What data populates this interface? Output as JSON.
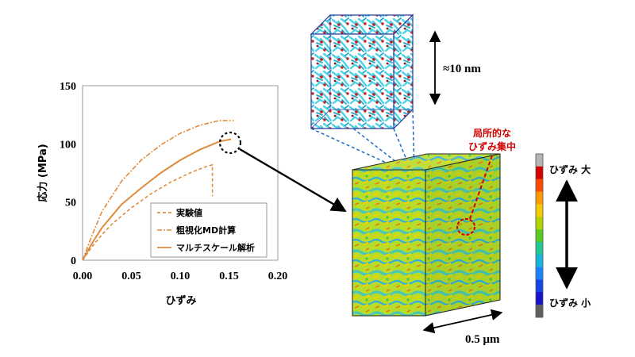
{
  "chart_data": {
    "type": "line",
    "xlabel": "ひずみ",
    "ylabel": "応力 (MPa)",
    "xlim": [
      0,
      0.2
    ],
    "ylim": [
      0,
      150
    ],
    "x_ticks": [
      "0.00",
      "0.05",
      "0.10",
      "0.15",
      "0.20"
    ],
    "y_ticks": [
      "0",
      "50",
      "100",
      "150"
    ],
    "grid": false,
    "legend_position": "bottom-right",
    "series": [
      {
        "name": "実験値",
        "style": "dashed",
        "color": "#e08a3c",
        "x": [
          0,
          0.01,
          0.02,
          0.03,
          0.05,
          0.07,
          0.09,
          0.11,
          0.125,
          0.133,
          0.133,
          0.133
        ],
        "y": [
          0,
          12,
          22,
          31,
          45,
          57,
          67,
          75,
          80,
          82,
          70,
          55
        ]
      },
      {
        "name": "粗視化MD計算",
        "style": "dashdot",
        "color": "#e08a3c",
        "x": [
          0,
          0.01,
          0.02,
          0.04,
          0.06,
          0.08,
          0.1,
          0.12,
          0.14,
          0.155
        ],
        "y": [
          0,
          22,
          42,
          68,
          86,
          99,
          109,
          116,
          120,
          120
        ]
      },
      {
        "name": "マルチスケール解析",
        "style": "solid",
        "color": "#e08a3c",
        "x": [
          0,
          0.01,
          0.02,
          0.04,
          0.06,
          0.08,
          0.1,
          0.12,
          0.14,
          0.152
        ],
        "y": [
          0,
          15,
          28,
          48,
          62,
          75,
          86,
          95,
          102,
          104
        ]
      }
    ]
  },
  "callouts": {
    "size_nm": "≈10 nm",
    "size_um": "0.5 μm",
    "local_strain_line1": "局所的な",
    "local_strain_line2": "ひずみ集中"
  },
  "colorbar": {
    "high_label": "ひずみ  大",
    "low_label": "ひずみ  小",
    "colors": [
      "#b5b5b5",
      "#d40000",
      "#ff4a00",
      "#ff9a00",
      "#f2cc00",
      "#b4d400",
      "#58cc22",
      "#22c896",
      "#18b4dd",
      "#1a84ff",
      "#1446e6",
      "#1812c8",
      "#606060"
    ]
  }
}
